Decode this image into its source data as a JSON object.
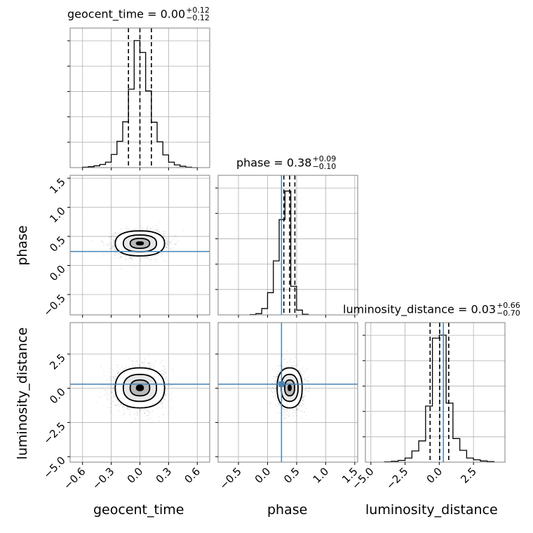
{
  "chart_data": {
    "type": "corner",
    "parameters": [
      "geocent_time",
      "phase",
      "luminosity_distance"
    ],
    "axis_labels": {
      "x": [
        "geocent_time",
        "phase",
        "luminosity_distance"
      ],
      "y": [
        "",
        "phase",
        "luminosity_distance"
      ]
    },
    "truth_color": "#4682b4",
    "truths": {
      "phase": 0.24,
      "luminosity_distance": 0.3
    },
    "ranges": {
      "geocent_time": [
        -0.73,
        0.73
      ],
      "phase": [
        -0.85,
        1.55
      ],
      "luminosity_distance": [
        -5.4,
        4.8
      ]
    },
    "ticks": {
      "geocent_time": {
        "values": [
          -0.6,
          -0.3,
          0.0,
          0.3,
          0.6
        ],
        "labels": [
          "−0.6",
          "−0.3",
          "0.0",
          "0.3",
          "0.6"
        ]
      },
      "phase": {
        "values": [
          -0.5,
          0.0,
          0.5,
          1.0,
          1.5
        ],
        "labels": [
          "−0.5",
          "0.0",
          "0.5",
          "1.0",
          "1.5"
        ]
      },
      "luminosity_distance": {
        "values": [
          -5.0,
          -2.5,
          0.0,
          2.5
        ],
        "labels": [
          "−5.0",
          "−2.5",
          "0.0",
          "2.5"
        ]
      }
    },
    "titles": [
      {
        "param": "geocent_time",
        "label": "geocent_time = 0.00",
        "plus": "+0.12",
        "minus": "−0.12"
      },
      {
        "param": "phase",
        "label": "phase = 0.38",
        "plus": "+0.09",
        "minus": "−0.10"
      },
      {
        "param": "luminosity_distance",
        "label": "luminosity_distance = 0.03",
        "plus": "+0.66",
        "minus": "−0.70"
      }
    ],
    "quantiles": {
      "geocent_time": [
        -0.12,
        0.0,
        0.12
      ],
      "phase": [
        0.28,
        0.38,
        0.47
      ],
      "luminosity_distance": [
        -0.67,
        0.03,
        0.69
      ]
    },
    "histograms": {
      "geocent_time": {
        "edges": [
          -0.6,
          -0.54,
          -0.48,
          -0.42,
          -0.36,
          -0.3,
          -0.24,
          -0.18,
          -0.12,
          -0.06,
          0.0,
          0.06,
          0.12,
          0.18,
          0.24,
          0.3,
          0.36,
          0.42,
          0.48,
          0.54,
          0.6
        ],
        "counts": [
          1,
          2,
          4,
          7,
          12,
          29,
          58,
          101,
          173,
          280,
          254,
          169,
          100,
          57,
          28,
          12,
          6,
          3,
          1,
          0
        ],
        "ymax": 280
      },
      "phase": {
        "edges": [
          -0.3,
          -0.2,
          -0.1,
          0.0,
          0.1,
          0.2,
          0.3,
          0.4,
          0.5,
          0.6,
          0.7
        ],
        "counts": [
          1,
          4,
          20,
          70,
          170,
          300,
          390,
          90,
          15,
          2
        ],
        "ymax": 400
      },
      "luminosity_distance": {
        "edges": [
          -4.0,
          -3.5,
          -3.0,
          -2.5,
          -2.0,
          -1.5,
          -1.0,
          -0.5,
          0.0,
          0.5,
          1.0,
          1.5,
          2.0,
          2.5,
          3.0,
          3.5,
          4.0
        ],
        "counts": [
          1,
          3,
          6,
          14,
          38,
          72,
          190,
          420,
          430,
          200,
          80,
          40,
          14,
          8,
          4,
          2
        ],
        "ymax": 430
      }
    },
    "joint": [
      {
        "x": "geocent_time",
        "y": "phase",
        "mean": [
          0.0,
          0.38
        ],
        "sd": [
          0.12,
          0.1
        ]
      },
      {
        "x": "geocent_time",
        "y": "luminosity_distance",
        "mean": [
          0.0,
          0.03
        ],
        "sd": [
          0.12,
          0.68
        ]
      },
      {
        "x": "phase",
        "y": "luminosity_distance",
        "mean": [
          0.38,
          0.03
        ],
        "sd": [
          0.1,
          0.68
        ]
      }
    ]
  }
}
